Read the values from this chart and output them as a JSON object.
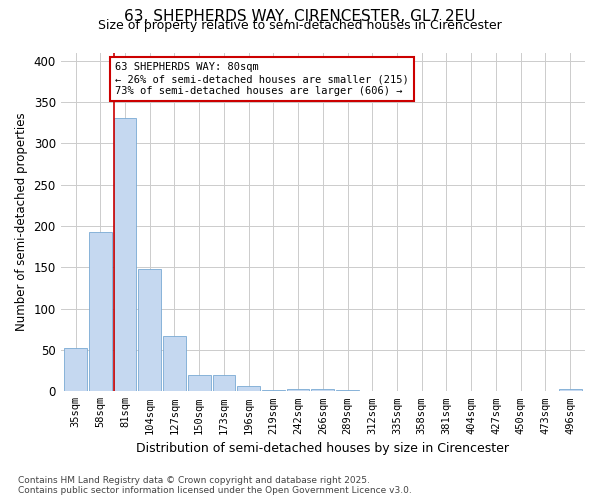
{
  "title1": "63, SHEPHERDS WAY, CIRENCESTER, GL7 2EU",
  "title2": "Size of property relative to semi-detached houses in Cirencester",
  "xlabel": "Distribution of semi-detached houses by size in Cirencester",
  "ylabel": "Number of semi-detached properties",
  "bar_labels": [
    "35sqm",
    "58sqm",
    "81sqm",
    "104sqm",
    "127sqm",
    "150sqm",
    "173sqm",
    "196sqm",
    "219sqm",
    "242sqm",
    "266sqm",
    "289sqm",
    "312sqm",
    "335sqm",
    "358sqm",
    "381sqm",
    "404sqm",
    "427sqm",
    "450sqm",
    "473sqm",
    "496sqm"
  ],
  "bar_values": [
    53,
    193,
    331,
    148,
    67,
    20,
    20,
    7,
    2,
    3,
    3,
    2,
    0,
    0,
    0,
    0,
    0,
    0,
    0,
    0,
    3
  ],
  "bar_color": "#c5d8f0",
  "bar_edge_color": "#7aaad4",
  "vline_x": 2,
  "vline_color": "#cc0000",
  "annotation_text": "63 SHEPHERDS WAY: 80sqm\n← 26% of semi-detached houses are smaller (215)\n73% of semi-detached houses are larger (606) →",
  "annotation_box_color": "#cc0000",
  "ylim": [
    0,
    410
  ],
  "yticks": [
    0,
    50,
    100,
    150,
    200,
    250,
    300,
    350,
    400
  ],
  "grid_color": "#cccccc",
  "bg_color": "#ffffff",
  "title1_fontsize": 11,
  "title2_fontsize": 9,
  "footnote": "Contains HM Land Registry data © Crown copyright and database right 2025.\nContains public sector information licensed under the Open Government Licence v3.0."
}
